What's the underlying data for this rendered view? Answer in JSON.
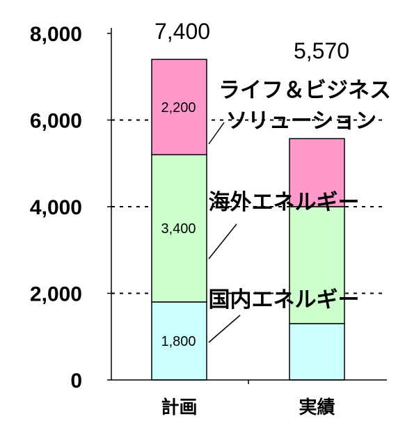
{
  "chart_data": {
    "type": "bar",
    "stacked": true,
    "categories": [
      "計画",
      "実績"
    ],
    "series": [
      {
        "name": "国内エネルギー",
        "values": [
          1800,
          1300
        ],
        "color": "#ccffff"
      },
      {
        "name": "海外エネルギー",
        "values": [
          3400,
          2700
        ],
        "color": "#ccffcc"
      },
      {
        "name": "ライフ＆ビジネスソリューション",
        "values": [
          2200,
          1570
        ],
        "color": "#ff99cc"
      }
    ],
    "totals": [
      7400,
      5570
    ],
    "total_labels": [
      "7,400",
      "5,570"
    ],
    "segment_labels": [
      {
        "text": "1,800",
        "category": 0,
        "series": 0
      },
      {
        "text": "3,400",
        "category": 0,
        "series": 1
      },
      {
        "text": "2,200",
        "category": 0,
        "series": 2
      }
    ],
    "series_label_lines": [
      [
        "ライフ＆ビジネス",
        "ソリューション"
      ],
      [
        "海外エネルギー"
      ],
      [
        "国内エネルギー"
      ]
    ],
    "yticks": [
      0,
      2000,
      4000,
      6000,
      8000
    ],
    "ytick_labels": [
      "0",
      "2,000",
      "4,000",
      "6,000",
      "8,000"
    ],
    "ylim": [
      0,
      8000
    ],
    "title": "",
    "xlabel": "",
    "ylabel": "",
    "grid": "dotted lines at 2,000 / 4,000 / 6,000",
    "legend": "none (series labelled inline)"
  }
}
